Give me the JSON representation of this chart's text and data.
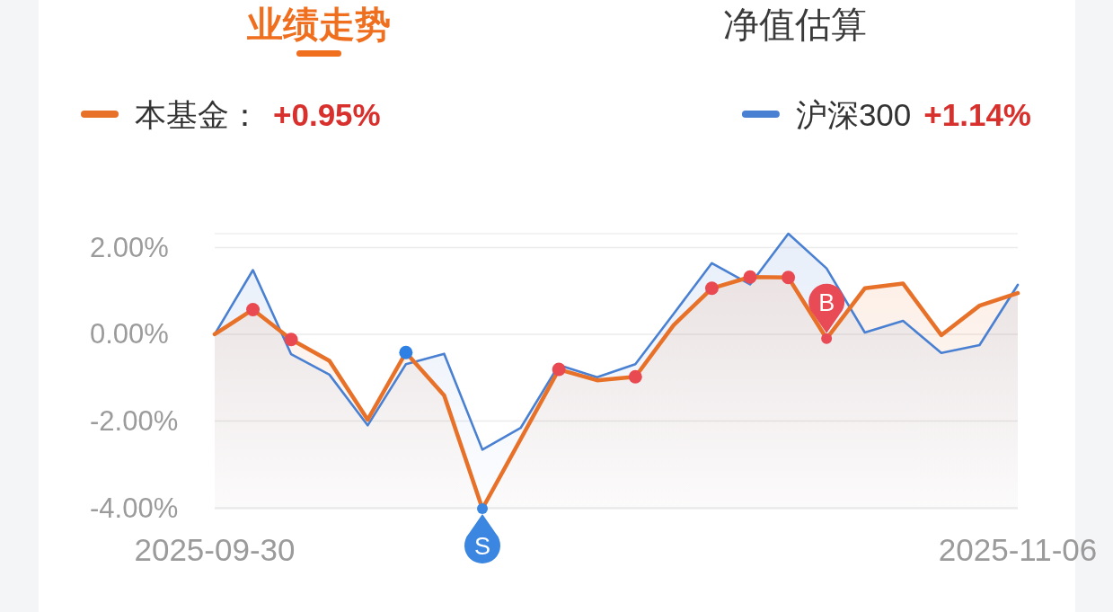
{
  "chart_data": {
    "type": "area",
    "title": "业绩走势",
    "categories": [
      "2025-09-30",
      null,
      null,
      null,
      null,
      null,
      null,
      null,
      null,
      null,
      null,
      null,
      null,
      null,
      null,
      null,
      null,
      null,
      null,
      null,
      null,
      "2025-11-06"
    ],
    "series": [
      {
        "name": "本基金：",
        "color": "#e8712a",
        "values": [
          0,
          0.57,
          -0.12,
          -0.61,
          -1.97,
          -0.42,
          -1.41,
          -4.02,
          -2.42,
          -0.81,
          -1.06,
          -0.98,
          0.21,
          1.06,
          1.32,
          1.31,
          -0.1,
          1.06,
          1.17,
          -0.02,
          0.66,
          0.95
        ]
      },
      {
        "name": "沪深300",
        "color": "#4a80d2",
        "values": [
          0,
          1.48,
          -0.46,
          -0.93,
          -2.1,
          -0.69,
          -0.45,
          -2.66,
          -2.16,
          -0.71,
          -0.99,
          -0.69,
          0.47,
          1.64,
          1.15,
          2.32,
          1.52,
          0.04,
          0.31,
          -0.43,
          -0.25,
          1.14
        ]
      },
      {
        "type": "scatter",
        "color": "#e94a51",
        "marker": "circle",
        "values": [
          null,
          0.57,
          -0.12,
          null,
          null,
          null,
          null,
          null,
          null,
          -0.81,
          null,
          -0.98,
          null,
          1.06,
          1.32,
          1.31,
          null,
          null,
          null,
          null,
          null,
          null
        ]
      },
      {
        "type": "scatter",
        "color": "#2f80e4",
        "marker": "circle",
        "values": [
          null,
          null,
          null,
          null,
          null,
          -0.42,
          null,
          null,
          null,
          null,
          null,
          null,
          null,
          null,
          null,
          null,
          null,
          null,
          null,
          null,
          null,
          null
        ]
      },
      {
        "type": "scatter",
        "color": "#3a86e0",
        "marker": "circle",
        "values": [
          null,
          null,
          null,
          null,
          null,
          null,
          null,
          -4.02,
          null,
          null,
          null,
          null,
          null,
          null,
          null,
          null,
          null,
          null,
          null,
          null,
          null,
          null
        ],
        "value_labels": [
          null,
          null,
          null,
          null,
          null,
          null,
          null,
          "S",
          null,
          null,
          null,
          null,
          null,
          null,
          null,
          null,
          null,
          null,
          null,
          null,
          null,
          null
        ]
      },
      {
        "type": "scatter",
        "color": "#e84a56",
        "marker": "circle",
        "values": [
          null,
          null,
          null,
          null,
          null,
          null,
          null,
          null,
          null,
          null,
          null,
          null,
          null,
          null,
          null,
          null,
          -0.1,
          null,
          null,
          null,
          null,
          null
        ],
        "value_labels": [
          null,
          null,
          null,
          null,
          null,
          null,
          null,
          null,
          null,
          null,
          null,
          null,
          null,
          null,
          null,
          null,
          "B",
          null,
          null,
          null,
          null,
          null
        ]
      }
    ],
    "ylim": [
      -4.02,
      2.32
    ],
    "yticks": [
      {
        "value": 2,
        "label": "2.00%"
      },
      {
        "value": 0,
        "label": "0.00%"
      },
      {
        "value": -2,
        "label": "-2.00%"
      },
      {
        "value": -4,
        "label": "-4.00%"
      }
    ],
    "grid": "y",
    "legend": "top",
    "annotations": [
      "+0.95%",
      "+1.14%",
      "净值估算"
    ]
  }
}
